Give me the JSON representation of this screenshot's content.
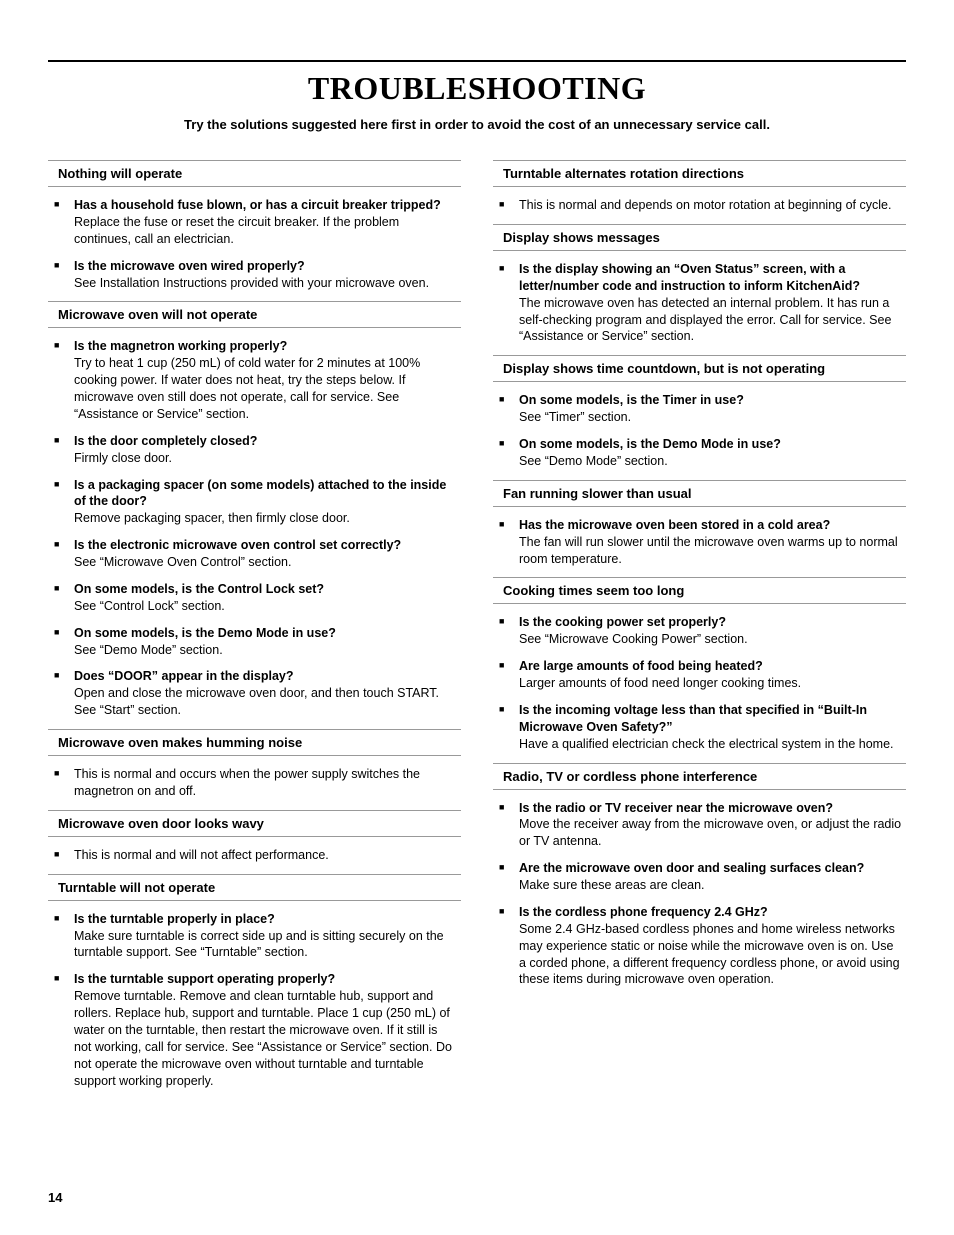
{
  "title": "TROUBLESHOOTING",
  "subtitle": "Try the solutions suggested here first in order to avoid the cost of an unnecessary service call.",
  "page_number": "14",
  "colors": {
    "text": "#000000",
    "rule": "#999999",
    "top_rule": "#000000",
    "background": "#ffffff"
  },
  "typography": {
    "title_family": "Georgia, serif",
    "body_family": "Arial, sans-serif",
    "title_size_pt": 24,
    "heading_size_pt": 10,
    "body_size_pt": 9.5
  },
  "left_sections": [
    {
      "heading": "Nothing will operate",
      "items": [
        {
          "q": "Has a household fuse blown, or has a circuit breaker tripped?",
          "a": "Replace the fuse or reset the circuit breaker. If the problem continues, call an electrician."
        },
        {
          "q": "Is the microwave oven wired properly?",
          "a": "See Installation Instructions provided with your microwave oven."
        }
      ]
    },
    {
      "heading": "Microwave oven will not operate",
      "items": [
        {
          "q": "Is the magnetron working properly?",
          "a": "Try to heat 1 cup (250 mL) of cold water for 2 minutes at 100% cooking power. If water does not heat, try the steps below. If microwave oven still does not operate, call for service. See “Assistance or Service” section."
        },
        {
          "q": "Is the door completely closed?",
          "a": "Firmly close door."
        },
        {
          "q": "Is a packaging spacer (on some models) attached to the inside of the door?",
          "a": "Remove packaging spacer, then firmly close door."
        },
        {
          "q": "Is the electronic microwave oven control set correctly?",
          "a": "See “Microwave Oven Control” section."
        },
        {
          "q": "On some models, is the Control Lock set?",
          "a": "See “Control Lock” section."
        },
        {
          "q": "On some models, is the Demo Mode in use?",
          "a": "See “Demo Mode” section."
        },
        {
          "q": "Does “DOOR” appear in the display?",
          "a": "Open and close the microwave oven door, and then touch START. See “Start” section."
        }
      ]
    },
    {
      "heading": "Microwave oven makes humming noise",
      "items": [
        {
          "q": "",
          "a": "This is normal and occurs when the power supply switches the magnetron on and off."
        }
      ]
    },
    {
      "heading": "Microwave oven door looks wavy",
      "items": [
        {
          "q": "",
          "a": "This is normal and will not affect performance."
        }
      ]
    },
    {
      "heading": "Turntable will not operate",
      "items": [
        {
          "q": "Is the turntable properly in place?",
          "a": "Make sure turntable is correct side up and is sitting securely on the turntable support. See “Turntable” section."
        },
        {
          "q": "Is the turntable support operating properly?",
          "a": "Remove turntable. Remove and clean turntable hub, support and rollers. Replace hub, support and turntable. Place 1 cup (250 mL) of water on the turntable, then restart the microwave oven. If it still is not working, call for service. See “Assistance or Service” section. Do not operate the microwave oven without turntable and turntable support working properly."
        }
      ]
    }
  ],
  "right_sections": [
    {
      "heading": "Turntable alternates rotation directions",
      "items": [
        {
          "q": "",
          "a": "This is normal and depends on motor rotation at beginning of cycle."
        }
      ]
    },
    {
      "heading": "Display shows messages",
      "items": [
        {
          "q": "Is the display showing an “Oven Status” screen, with a letter/number code and instruction to inform KitchenAid?",
          "a": "The microwave oven has detected an internal problem. It has run a self-checking program and displayed the error. Call for service. See “Assistance or Service” section."
        }
      ]
    },
    {
      "heading": "Display shows time countdown, but is not operating",
      "items": [
        {
          "q": "On some models, is the Timer in use?",
          "a": "See “Timer” section."
        },
        {
          "q": "On some models, is the Demo Mode in use?",
          "a": "See “Demo Mode” section."
        }
      ]
    },
    {
      "heading": "Fan running slower than usual",
      "items": [
        {
          "q": "Has the microwave oven been stored in a cold area?",
          "a": "The fan will run slower until the microwave oven warms up to normal room temperature."
        }
      ]
    },
    {
      "heading": "Cooking times seem too long",
      "items": [
        {
          "q": "Is the cooking power set properly?",
          "a": "See “Microwave Cooking Power” section."
        },
        {
          "q": "Are large amounts of food being heated?",
          "a": "Larger amounts of food need longer cooking times."
        },
        {
          "q": "Is the incoming voltage less than that specified in “Built-In Microwave Oven Safety?”",
          "a": "Have a qualified electrician check the electrical system in the home."
        }
      ]
    },
    {
      "heading": "Radio, TV or cordless phone interference",
      "items": [
        {
          "q": "Is the radio or TV receiver near the microwave oven?",
          "a": "Move the receiver away from the microwave oven, or adjust the radio or TV antenna."
        },
        {
          "q": "Are the microwave oven door and sealing surfaces clean?",
          "a": "Make sure these areas are clean."
        },
        {
          "q": "Is the cordless phone frequency 2.4 GHz?",
          "a": "Some 2.4 GHz-based cordless phones and home wireless networks may experience static or noise while the microwave oven is on. Use a corded phone, a different frequency cordless phone, or avoid using these items during microwave oven operation."
        }
      ]
    }
  ]
}
